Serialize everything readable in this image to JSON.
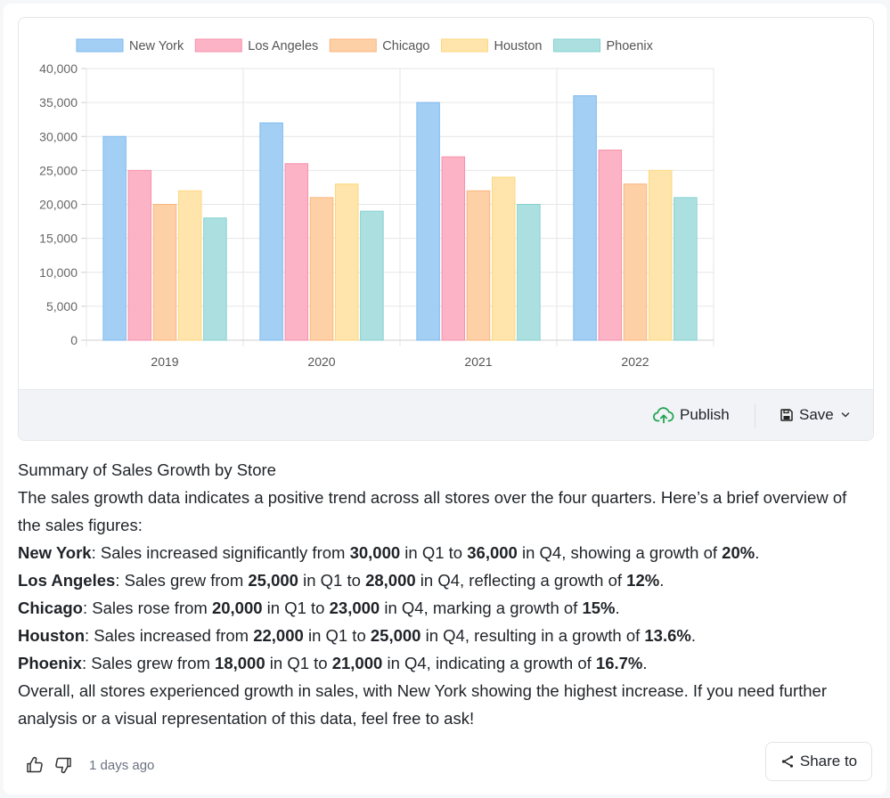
{
  "chart_data": {
    "type": "bar",
    "categories": [
      "2019",
      "2020",
      "2021",
      "2022"
    ],
    "series": [
      {
        "name": "New York",
        "values": [
          30000,
          32000,
          35000,
          36000
        ],
        "color": "#a3cff5",
        "border": "#7fb9ee"
      },
      {
        "name": "Los Angeles",
        "values": [
          25000,
          26000,
          27000,
          28000
        ],
        "color": "#fdb3c6",
        "border": "#f592ab"
      },
      {
        "name": "Chicago",
        "values": [
          20000,
          21000,
          22000,
          23000
        ],
        "color": "#fed0a6",
        "border": "#fbb67c"
      },
      {
        "name": "Houston",
        "values": [
          22000,
          23000,
          24000,
          25000
        ],
        "color": "#ffe5ab",
        "border": "#fdd77e"
      },
      {
        "name": "Phoenix",
        "values": [
          18000,
          19000,
          20000,
          21000
        ],
        "color": "#ace0e0",
        "border": "#86d0d0"
      }
    ],
    "yticks": [
      "0",
      "5,000",
      "10,000",
      "15,000",
      "20,000",
      "25,000",
      "30,000",
      "35,000",
      "40,000"
    ],
    "ylim": [
      0,
      40000
    ],
    "grid": true,
    "legend": "top"
  },
  "chart_footer": {
    "publish_label": "Publish",
    "save_label": "Save"
  },
  "summary": {
    "title": "Summary of Sales Growth by Store",
    "intro": "The sales growth data indicates a positive trend across all stores over the four quarters. Here’s a brief overview of the sales figures:",
    "items": [
      {
        "store": "New York",
        "a": ": Sales increased significantly from ",
        "v1": "30,000",
        "b": " in Q1 to ",
        "v2": "36,000",
        "c": " in Q4, showing a growth of ",
        "g": "20%",
        "d": "."
      },
      {
        "store": "Los Angeles",
        "a": ": Sales grew from ",
        "v1": "25,000",
        "b": " in Q1 to ",
        "v2": "28,000",
        "c": " in Q4, reflecting a growth of ",
        "g": "12%",
        "d": "."
      },
      {
        "store": "Chicago",
        "a": ": Sales rose from ",
        "v1": "20,000",
        "b": " in Q1 to ",
        "v2": "23,000",
        "c": " in Q4, marking a growth of ",
        "g": "15%",
        "d": "."
      },
      {
        "store": "Houston",
        "a": ": Sales increased from ",
        "v1": "22,000",
        "b": " in Q1 to ",
        "v2": "25,000",
        "c": " in Q4, resulting in a growth of ",
        "g": "13.6%",
        "d": "."
      },
      {
        "store": "Phoenix",
        "a": ": Sales grew from ",
        "v1": "18,000",
        "b": " in Q1 to ",
        "v2": "21,000",
        "c": " in Q4, indicating a growth of ",
        "g": "16.7%",
        "d": "."
      }
    ],
    "conclusion": "Overall, all stores experienced growth in sales, with New York showing the highest increase. If you need further analysis or a visual representation of this data, feel free to ask!"
  },
  "actions": {
    "timestamp": "1 days ago",
    "share_label": "Share to",
    "icons": [
      "thumbs-up-icon",
      "thumbs-down-icon",
      "share-icon"
    ]
  }
}
